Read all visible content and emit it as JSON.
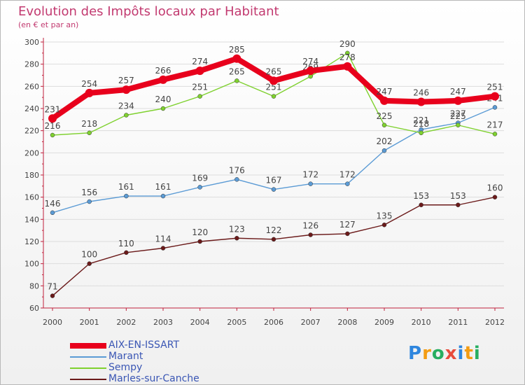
{
  "header": {
    "title": "Evolution des Impôts locaux par Habitant",
    "subtitle": "(en € et par an)"
  },
  "logo": {
    "letters": [
      "P",
      "r",
      "o",
      "x",
      "i",
      "t",
      "i"
    ]
  },
  "colors": {
    "title": "#c23a70",
    "axis": "#c0203c",
    "grid": "#dddddd",
    "label": "#444444",
    "legend_text": "#3a56b4"
  },
  "chart_data": {
    "type": "line",
    "title": "Evolution des Impôts locaux par Habitant",
    "subtitle": "(en € et par an)",
    "xlabel": "",
    "ylabel": "",
    "categories": [
      "2000",
      "2001",
      "2002",
      "2003",
      "2004",
      "2005",
      "2006",
      "2007",
      "2008",
      "2009",
      "2010",
      "2011",
      "2012"
    ],
    "ylim": [
      60,
      300
    ],
    "yticks": [
      60,
      80,
      100,
      120,
      140,
      160,
      180,
      200,
      220,
      240,
      260,
      280,
      300
    ],
    "grid": true,
    "legend_position": "bottom-left",
    "series": [
      {
        "name": "AIX-EN-ISSART",
        "color": "#e8001c",
        "values": [
          231,
          254,
          257,
          266,
          274,
          285,
          265,
          274,
          278,
          247,
          246,
          247,
          251
        ]
      },
      {
        "name": "Marant",
        "color": "#5b9bd5",
        "values": [
          146,
          156,
          161,
          161,
          169,
          176,
          167,
          172,
          172,
          202,
          221,
          227,
          241
        ]
      },
      {
        "name": "Sempy",
        "color": "#7fd12f",
        "values": [
          216,
          218,
          234,
          240,
          251,
          265,
          251,
          269,
          290,
          225,
          218,
          225,
          217
        ]
      },
      {
        "name": "Marles-sur-Canche",
        "color": "#6b1a1a",
        "values": [
          71,
          100,
          110,
          114,
          120,
          123,
          122,
          126,
          127,
          135,
          153,
          153,
          160
        ]
      }
    ]
  }
}
